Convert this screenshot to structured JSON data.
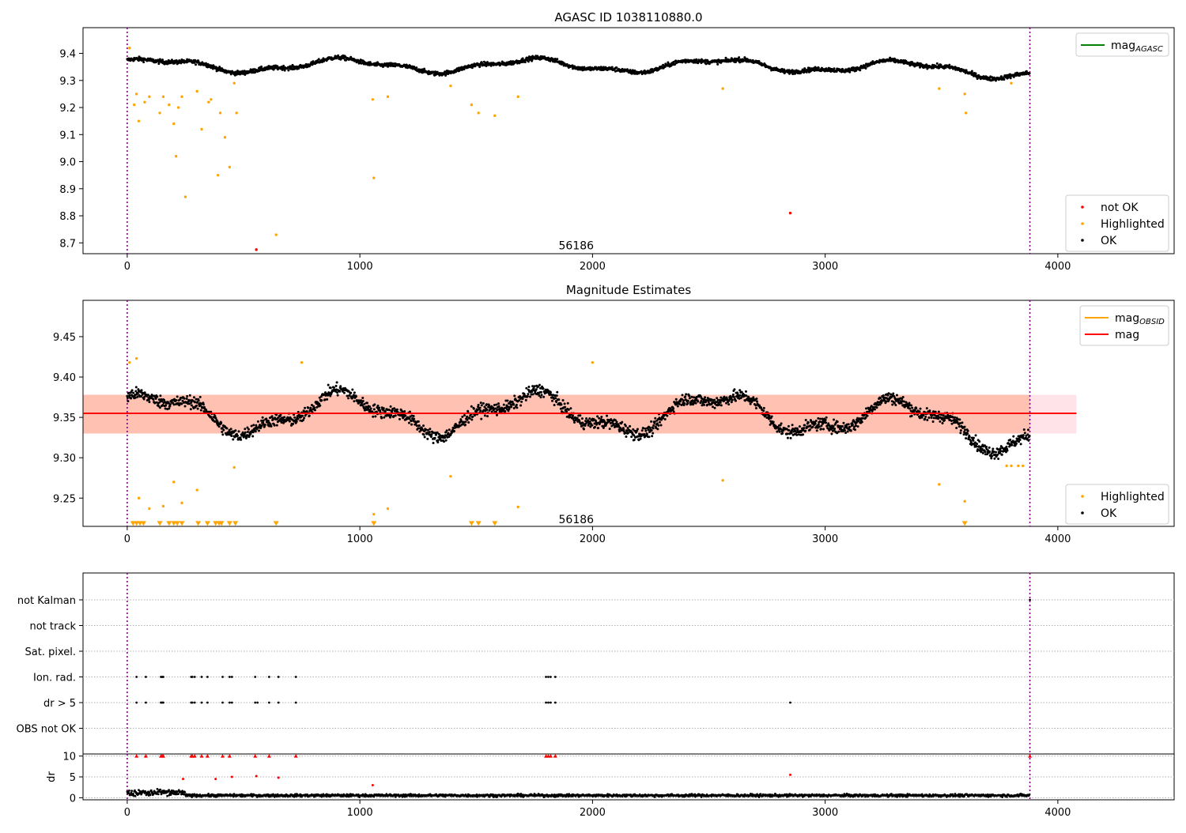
{
  "chart_data": [
    {
      "type": "scatter",
      "title": "AGASC ID 1038110880.0",
      "xlim": [
        -190,
        4500
      ],
      "ylim": [
        8.66,
        9.495
      ],
      "xticks": [
        0,
        1000,
        2000,
        3000,
        4000
      ],
      "yticks": [
        8.7,
        8.8,
        8.9,
        9.0,
        9.1,
        9.2,
        9.3,
        9.4
      ],
      "ytick_decimals": 1,
      "vlines": [
        0,
        3880
      ],
      "obsid_label": {
        "text": "56186",
        "x": 1930,
        "y": 8.69
      },
      "legend_upper": {
        "placement": "top-right",
        "entries": [
          {
            "label": "mag",
            "sub": "AGASC",
            "color": "#008000",
            "kind": "line"
          }
        ]
      },
      "legend_lower": {
        "placement": "bottom-right",
        "entries": [
          {
            "label": "not OK",
            "color": "#ff0000",
            "kind": "point"
          },
          {
            "label": "Highlighted",
            "color": "#ffa500",
            "kind": "point"
          },
          {
            "label": "OK",
            "color": "#000000",
            "kind": "point"
          }
        ]
      },
      "series": [
        {
          "name": "OK",
          "color": "#000000",
          "generator": "main_band",
          "x_range": [
            0,
            3880
          ],
          "count": 2200,
          "ylevel": "top"
        },
        {
          "name": "Highlighted",
          "color": "#ffa500",
          "x": [
            10,
            30,
            40,
            50,
            75,
            95,
            140,
            155,
            180,
            200,
            210,
            220,
            235,
            250,
            300,
            320,
            350,
            360,
            390,
            400,
            420,
            440,
            460,
            470,
            640,
            1055,
            1060,
            1120,
            1390,
            1480,
            1510,
            1580,
            1680,
            2560,
            3490,
            3600,
            3605,
            3800
          ],
          "y": [
            9.42,
            9.21,
            9.25,
            9.15,
            9.22,
            9.24,
            9.18,
            9.24,
            9.21,
            9.14,
            9.02,
            9.2,
            9.24,
            8.87,
            9.26,
            9.12,
            9.22,
            9.23,
            8.95,
            9.18,
            9.09,
            8.98,
            9.29,
            9.18,
            8.73,
            9.23,
            8.94,
            9.24,
            9.28,
            9.21,
            9.18,
            9.17,
            9.24,
            9.27,
            9.27,
            9.25,
            9.18,
            9.29
          ]
        },
        {
          "name": "not OK",
          "color": "#ff0000",
          "x": [
            555,
            2850
          ],
          "y": [
            8.675,
            8.81
          ]
        }
      ]
    },
    {
      "type": "scatter",
      "title": "Magnitude Estimates",
      "xlim": [
        -190,
        4500
      ],
      "ylim": [
        9.215,
        9.495
      ],
      "xticks": [
        0,
        1000,
        2000,
        3000,
        4000
      ],
      "yticks": [
        9.25,
        9.3,
        9.35,
        9.4,
        9.45
      ],
      "ytick_decimals": 2,
      "vlines": [
        0,
        3880
      ],
      "obsid_label": {
        "text": "56186",
        "x": 1930,
        "y": 9.224
      },
      "hline": {
        "y": 9.355,
        "x_range": [
          -190,
          4080
        ],
        "color": "#ff0000"
      },
      "bands": [
        {
          "y": [
            9.33,
            9.378
          ],
          "x_range": [
            -190,
            4080
          ],
          "color": "#ffc0cb",
          "opacity": 0.45
        },
        {
          "y": [
            9.33,
            9.378
          ],
          "x_range": [
            -190,
            3880
          ],
          "color": "#ffa07a",
          "opacity": 0.5
        }
      ],
      "legend_upper": {
        "placement": "top-right",
        "entries": [
          {
            "label": "mag",
            "sub": "OBSID",
            "color": "#ffa500",
            "kind": "line"
          },
          {
            "label": "mag",
            "sub": "",
            "color": "#ff0000",
            "kind": "line"
          }
        ]
      },
      "legend_lower": {
        "placement": "bottom-right",
        "entries": [
          {
            "label": "Highlighted",
            "color": "#ffa500",
            "kind": "point"
          },
          {
            "label": "OK",
            "color": "#000000",
            "kind": "point"
          }
        ]
      },
      "series": [
        {
          "name": "OK",
          "color": "#000000",
          "generator": "main_band",
          "x_range": [
            0,
            3880
          ],
          "count": 2200,
          "ylevel": "mid"
        },
        {
          "name": "Highlighted",
          "color": "#ffa500",
          "x": [
            10,
            40,
            50,
            95,
            155,
            200,
            235,
            300,
            460,
            750,
            1060,
            1120,
            1390,
            1680,
            2000,
            2560,
            3490,
            3600,
            3780,
            3800,
            3830,
            3850
          ],
          "y": [
            9.418,
            9.423,
            9.25,
            9.237,
            9.24,
            9.27,
            9.244,
            9.26,
            9.288,
            9.418,
            9.23,
            9.237,
            9.277,
            9.239,
            9.418,
            9.272,
            9.267,
            9.246,
            9.29,
            9.29,
            9.29,
            9.29
          ]
        },
        {
          "name": "Highlighted (below range)",
          "color": "#ffa500",
          "marker": "triangle_down",
          "x": [
            25,
            40,
            55,
            70,
            140,
            180,
            200,
            215,
            235,
            305,
            345,
            380,
            395,
            405,
            440,
            465,
            640,
            1060,
            1480,
            1510,
            1580,
            3600
          ],
          "y_clip": 9.2185
        }
      ]
    },
    {
      "type": "scatter",
      "title": "",
      "xlim": [
        -190,
        4500
      ],
      "xticks": [
        0,
        1000,
        2000,
        3000,
        4000
      ],
      "vlines": [
        0,
        3880
      ],
      "flag_rows": [
        "not Kalman",
        "not track",
        "Sat. pixel.",
        "Ion. rad.",
        "dr > 5",
        "OBS not OK"
      ],
      "flag_points": {
        "Ion. rad.": [
          40,
          80,
          145,
          150,
          155,
          275,
          280,
          290,
          320,
          345,
          410,
          440,
          450,
          550,
          610,
          650,
          725,
          1800,
          1810,
          1820,
          1840
        ],
        "dr > 5": [
          40,
          80,
          145,
          150,
          155,
          275,
          280,
          290,
          320,
          345,
          410,
          440,
          450,
          550,
          560,
          610,
          650,
          725,
          1800,
          1810,
          1820,
          1840,
          2850
        ],
        "not Kalman": [
          3880
        ]
      },
      "dr_panel": {
        "ylabel": "dr",
        "ylim": [
          -0.5,
          10.5
        ],
        "yticks": [
          0,
          5,
          10
        ],
        "ok_color": "#000000",
        "bad_color": "#ff0000",
        "bad_x": [
          40,
          80,
          145,
          150,
          155,
          240,
          275,
          280,
          290,
          320,
          345,
          380,
          410,
          440,
          450,
          550,
          555,
          610,
          650,
          725,
          1055,
          1800,
          1810,
          1820,
          1840,
          2850,
          3880
        ],
        "bad_y": [
          10,
          10,
          10,
          10,
          10,
          4.5,
          10,
          10,
          10,
          10,
          10,
          4.5,
          10,
          10,
          5,
          10,
          5.2,
          10,
          4.8,
          10,
          3,
          10,
          10,
          10,
          10,
          5.5,
          10
        ]
      }
    }
  ]
}
